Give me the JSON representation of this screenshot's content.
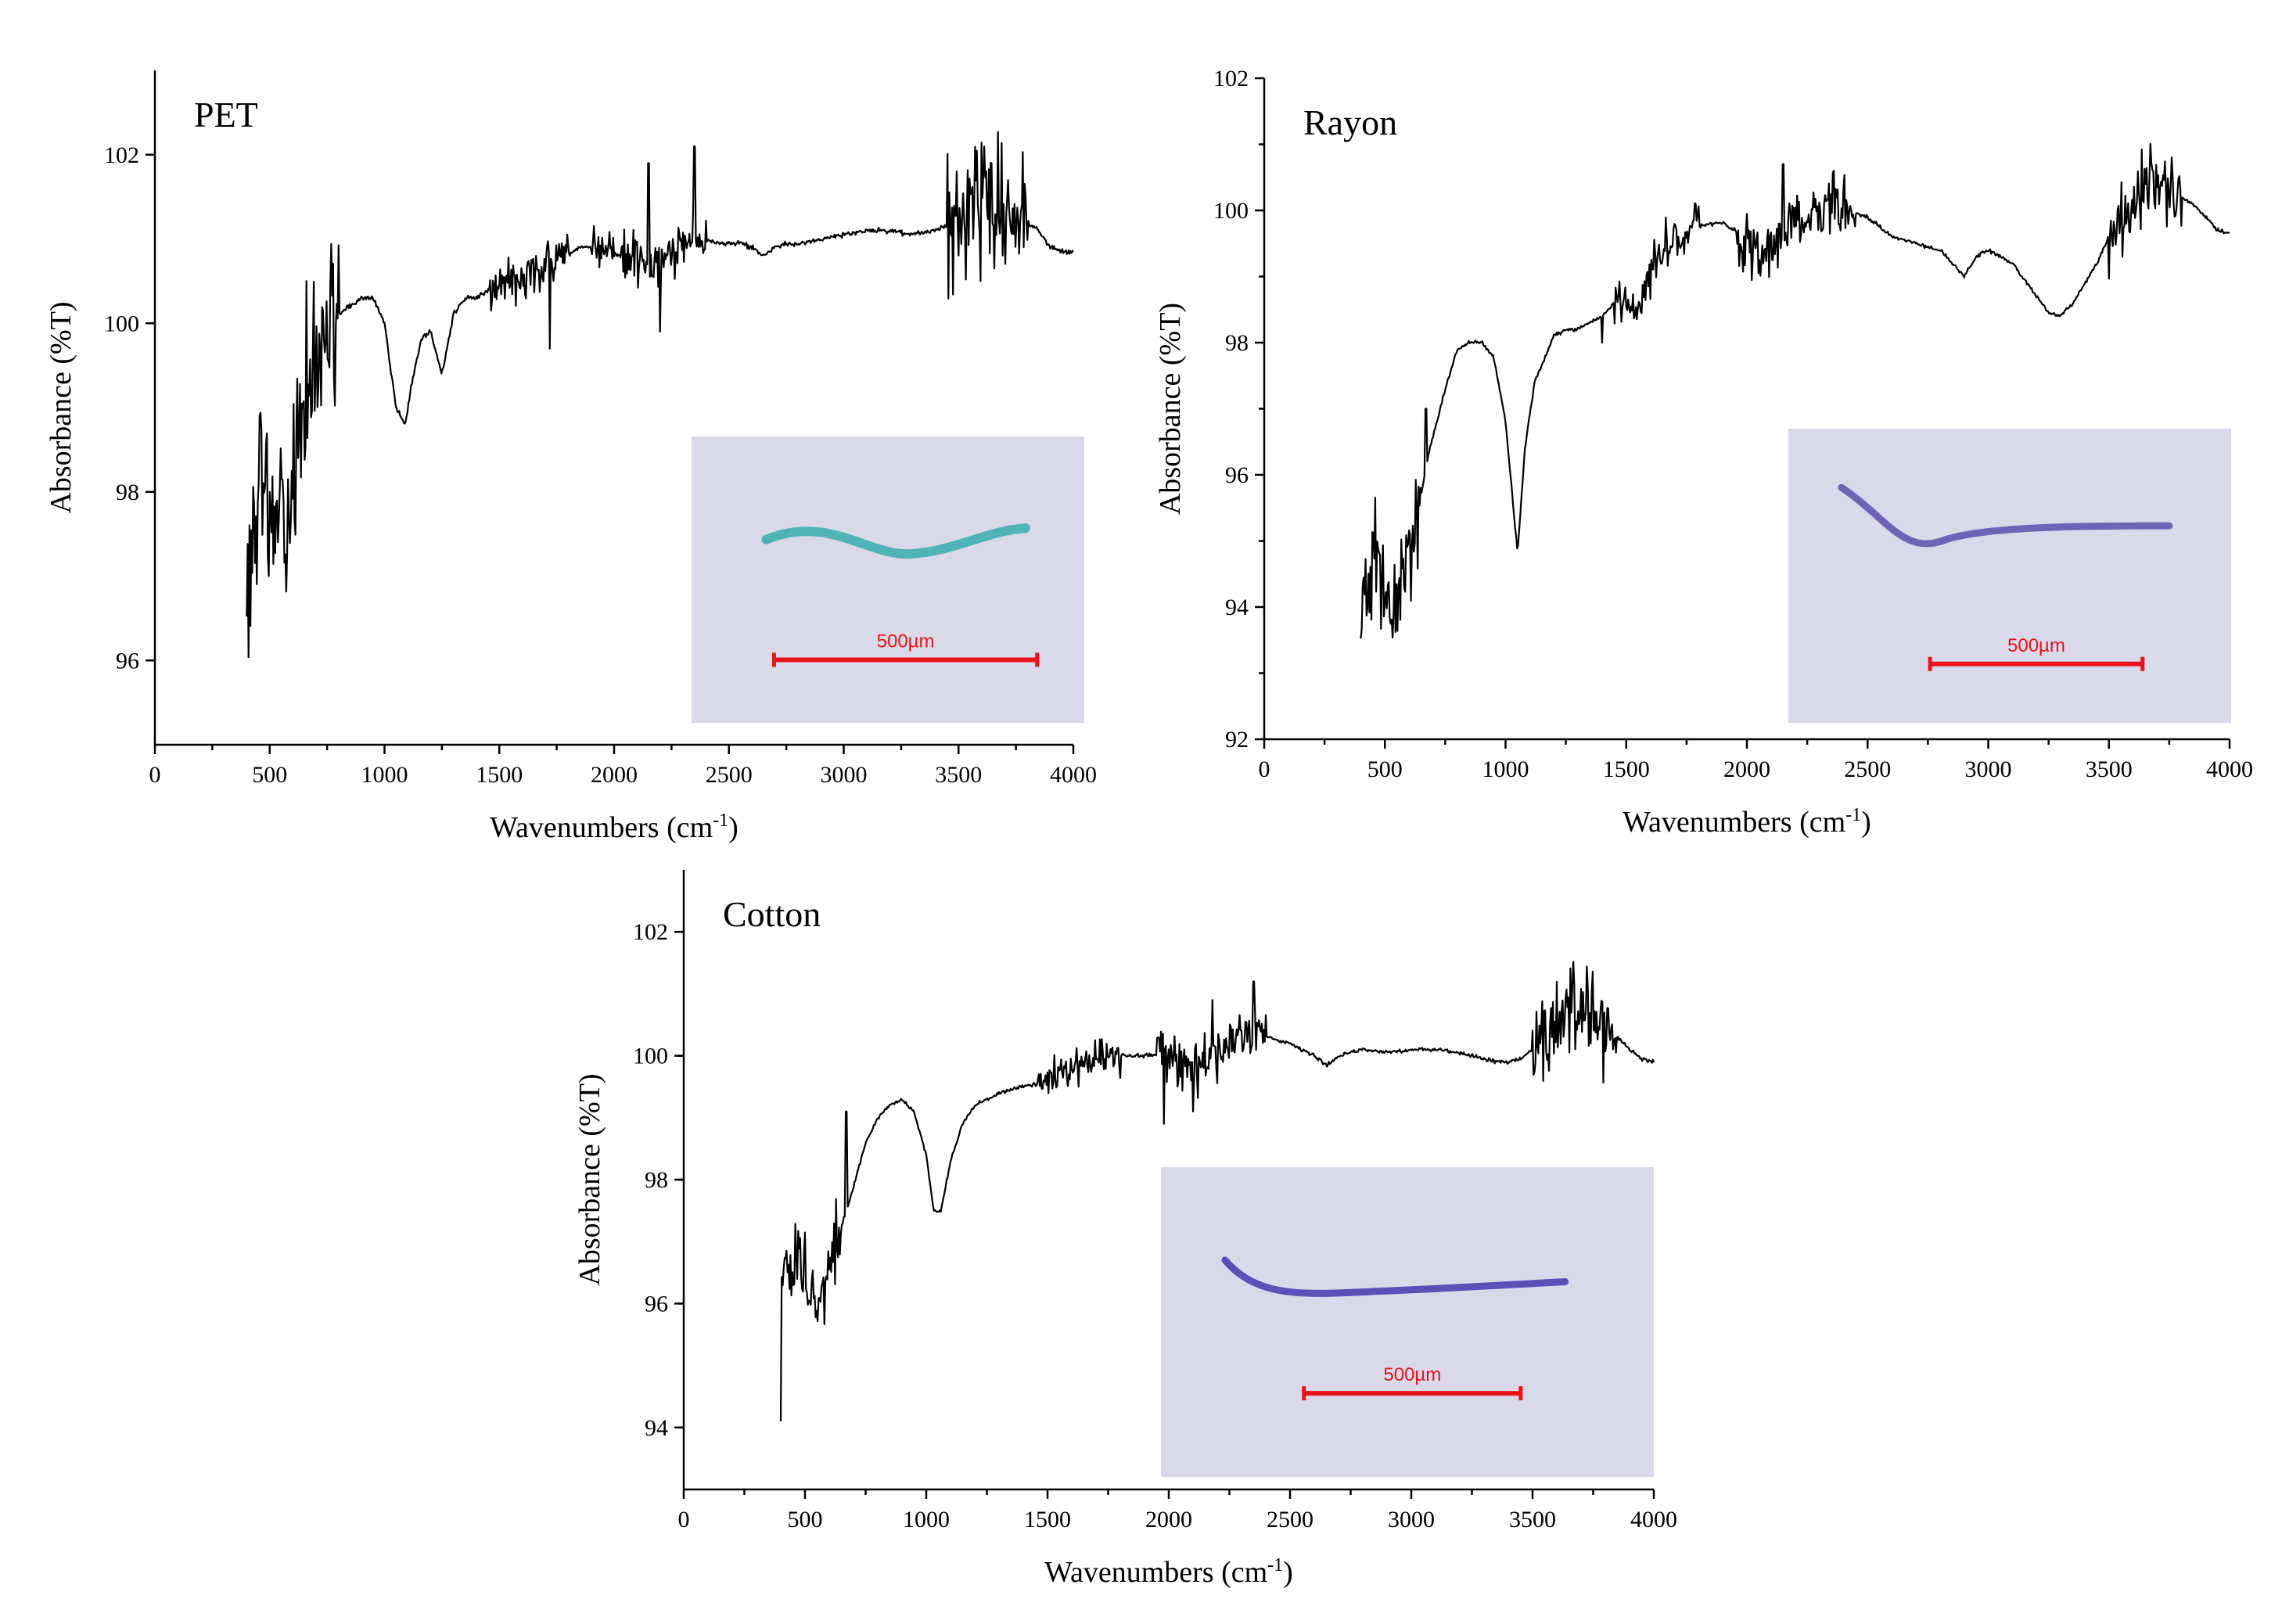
{
  "chart_data": [
    {
      "type": "line",
      "title": "PET",
      "xlabel": "Wavenumbers",
      "xlabel_unit": "(cm",
      "xlabel_sup": "-1",
      "xlabel_close": ")",
      "ylabel": "Absorbance (%T)",
      "xlim": [
        0,
        4000
      ],
      "ylim": [
        95,
        103
      ],
      "xticks": [
        0,
        500,
        1000,
        1500,
        2000,
        2500,
        3000,
        3500,
        4000
      ],
      "yticks": [
        96,
        98,
        100,
        102
      ],
      "inset": {
        "type": "micrograph",
        "fiber_color": "#4fb3b8",
        "background": "#d9d9e8",
        "scale_label": "500µm"
      },
      "series": [
        {
          "name": "PET",
          "noise": [
            [
              400,
              800,
              1.2
            ],
            [
              1460,
              1800,
              0.35
            ],
            [
              1900,
              2000,
              0.3
            ],
            [
              2030,
              2400,
              0.45
            ],
            [
              3450,
              3800,
              1.0
            ]
          ],
          "spikes": [
            [
              660,
              100.5
            ],
            [
              2150,
              101.9
            ],
            [
              2350,
              102.1
            ],
            [
              1720,
              99.7
            ],
            [
              2200,
              99.9
            ]
          ],
          "x": [
            400,
            430,
            460,
            500,
            560,
            620,
            660,
            700,
            750,
            800,
            850,
            900,
            950,
            1000,
            1050,
            1090,
            1120,
            1160,
            1200,
            1250,
            1300,
            1350,
            1400,
            1460,
            1500,
            1560,
            1620,
            1700,
            1760,
            1800,
            1850,
            1900,
            1950,
            1990,
            2050,
            2100,
            2150,
            2200,
            2250,
            2300,
            2330,
            2350,
            2370,
            2400,
            2450,
            2500,
            2550,
            2600,
            2650,
            2700,
            2750,
            2800,
            2900,
            3000,
            3100,
            3200,
            3300,
            3400,
            3500,
            3550,
            3600,
            3650,
            3700,
            3750,
            3800,
            3850,
            3900,
            3950,
            4000
          ],
          "y": [
            96.8,
            97.6,
            97.9,
            97.7,
            97.6,
            98.3,
            98.8,
            99.6,
            99.9,
            100.1,
            100.2,
            100.3,
            100.3,
            100.0,
            99.0,
            98.8,
            99.3,
            99.8,
            99.9,
            99.4,
            100.1,
            100.3,
            100.3,
            100.4,
            100.5,
            100.5,
            100.6,
            100.7,
            100.8,
            100.8,
            100.9,
            100.9,
            100.9,
            100.9,
            100.7,
            100.8,
            100.6,
            100.7,
            100.8,
            100.9,
            101.0,
            101.2,
            101.0,
            101.0,
            100.95,
            100.95,
            100.95,
            100.9,
            100.8,
            100.9,
            100.95,
            100.95,
            101.0,
            101.05,
            101.1,
            101.1,
            101.05,
            101.1,
            101.2,
            101.3,
            101.4,
            101.5,
            101.4,
            101.3,
            101.2,
            101.1,
            100.9,
            100.85,
            100.85
          ]
        }
      ]
    },
    {
      "type": "line",
      "title": "Rayon",
      "xlabel": "Wavenumbers",
      "xlabel_unit": "(cm",
      "xlabel_sup": "-1",
      "xlabel_close": ")",
      "ylabel": "Absorbance (%T)",
      "xlim": [
        0,
        4000
      ],
      "ylim": [
        92,
        102
      ],
      "xticks": [
        0,
        500,
        1000,
        1500,
        2000,
        2500,
        3000,
        3500,
        4000
      ],
      "yticks": [
        92,
        94,
        96,
        98,
        100,
        102
      ],
      "inset": {
        "type": "micrograph",
        "fiber_color": "#6f63b8",
        "background": "#d9d9ea",
        "scale_label": "500µm"
      },
      "series": [
        {
          "name": "Rayon",
          "noise": [
            [
              400,
              650,
              1.2
            ],
            [
              1450,
              1800,
              0.5
            ],
            [
              1960,
              2450,
              0.6
            ],
            [
              3500,
              3800,
              0.8
            ]
          ],
          "spikes": [
            [
              670,
              97.0
            ],
            [
              2150,
              100.7
            ],
            [
              1400,
              98.0
            ],
            [
              2360,
              100.6
            ]
          ],
          "x": [
            400,
            450,
            500,
            560,
            620,
            680,
            750,
            800,
            850,
            900,
            950,
            1000,
            1030,
            1050,
            1080,
            1120,
            1200,
            1250,
            1300,
            1350,
            1400,
            1450,
            1500,
            1550,
            1600,
            1650,
            1700,
            1750,
            1800,
            1850,
            1900,
            1950,
            2000,
            2050,
            2100,
            2150,
            2200,
            2250,
            2300,
            2350,
            2400,
            2500,
            2600,
            2700,
            2800,
            2850,
            2900,
            2950,
            3000,
            3100,
            3200,
            3250,
            3300,
            3350,
            3400,
            3450,
            3500,
            3550,
            3600,
            3650,
            3700,
            3750,
            3800,
            3850,
            3900,
            3950,
            4000
          ],
          "y": [
            94.0,
            94.7,
            94.3,
            94.0,
            95.1,
            96.3,
            97.3,
            97.9,
            98.0,
            98.0,
            97.8,
            96.8,
            95.6,
            94.8,
            96.4,
            97.4,
            98.1,
            98.2,
            98.2,
            98.3,
            98.4,
            98.6,
            98.7,
            98.5,
            99.1,
            99.4,
            99.6,
            99.7,
            99.75,
            99.8,
            99.8,
            99.7,
            99.5,
            99.4,
            99.5,
            99.6,
            99.8,
            99.7,
            99.9,
            100.1,
            100.0,
            99.9,
            99.6,
            99.5,
            99.4,
            99.2,
            99.0,
            99.3,
            99.4,
            99.2,
            98.7,
            98.45,
            98.4,
            98.6,
            98.9,
            99.2,
            99.6,
            99.9,
            100.1,
            100.3,
            100.4,
            100.3,
            100.2,
            100.1,
            99.9,
            99.7,
            99.65
          ]
        }
      ]
    },
    {
      "type": "line",
      "title": "Cotton",
      "xlabel": "Wavenumbers",
      "xlabel_unit": "(cm",
      "xlabel_sup": "-1",
      "xlabel_close": ")",
      "ylabel": "Absorbance (%T)",
      "xlim": [
        0,
        4000
      ],
      "ylim": [
        93,
        103
      ],
      "xticks": [
        0,
        500,
        1000,
        1500,
        2000,
        2500,
        3000,
        3500,
        4000
      ],
      "yticks": [
        94,
        96,
        98,
        100,
        102
      ],
      "inset": {
        "type": "micrograph",
        "fiber_color": "#5b4fb8",
        "background": "#d9d9ea",
        "scale_label": "500µm"
      },
      "series": [
        {
          "name": "Cotton",
          "noise": [
            [
              400,
              650,
              0.8
            ],
            [
              1450,
              1800,
              0.4
            ],
            [
              1950,
              2400,
              0.6
            ],
            [
              3500,
              3850,
              1.0
            ]
          ],
          "spikes": [
            [
              400,
              94.1
            ],
            [
              670,
              99.1
            ],
            [
              2180,
              100.9
            ],
            [
              2350,
              101.2
            ],
            [
              1980,
              98.9
            ],
            [
              2100,
              99.1
            ]
          ],
          "x": [
            400,
            430,
            460,
            500,
            560,
            620,
            680,
            750,
            800,
            850,
            900,
            950,
            1000,
            1030,
            1060,
            1100,
            1150,
            1200,
            1300,
            1400,
            1500,
            1600,
            1700,
            1800,
            1900,
            2000,
            2100,
            2200,
            2300,
            2350,
            2400,
            2500,
            2600,
            2650,
            2700,
            2800,
            2900,
            3000,
            3100,
            3200,
            3300,
            3350,
            3400,
            3450,
            3500,
            3550,
            3600,
            3650,
            3700,
            3750,
            3800,
            3850,
            3900,
            3950,
            4000
          ],
          "y": [
            96.3,
            96.7,
            96.6,
            96.5,
            96.0,
            96.9,
            97.6,
            98.6,
            99.0,
            99.2,
            99.3,
            99.1,
            98.4,
            97.5,
            97.5,
            98.3,
            98.9,
            99.2,
            99.4,
            99.5,
            99.6,
            99.8,
            99.9,
            100.0,
            100.0,
            100.05,
            99.8,
            100.0,
            100.2,
            100.35,
            100.3,
            100.2,
            100.0,
            99.85,
            100.0,
            100.1,
            100.05,
            100.1,
            100.1,
            100.05,
            99.95,
            99.9,
            99.9,
            99.95,
            100.1,
            100.3,
            100.5,
            100.7,
            100.8,
            100.6,
            100.4,
            100.3,
            100.1,
            99.95,
            99.9
          ]
        }
      ]
    }
  ]
}
